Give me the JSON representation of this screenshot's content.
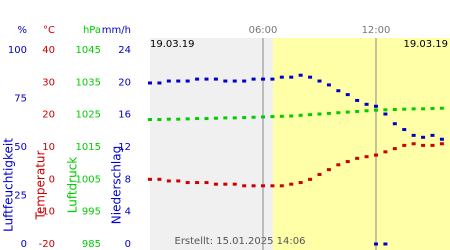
{
  "chart_data": {
    "type": "line",
    "dates": [
      "19.03.19",
      "19.03.19"
    ],
    "footer": "Erstellt: 15.01.2025 14:06",
    "xlim": [
      0,
      15.93
    ],
    "xticks": [
      {
        "value": 6,
        "label": "06:00"
      },
      {
        "value": 12,
        "label": "12:00"
      }
    ],
    "axes": [
      {
        "unit": "%",
        "label": "Luftfeuchtigkeit",
        "color": "#0000cc",
        "lim": [
          0,
          100
        ],
        "ticks": [
          0,
          25,
          50,
          75,
          100
        ]
      },
      {
        "unit": "°C",
        "label": "Temperatur",
        "color": "#cc0000",
        "lim": [
          -20,
          40
        ],
        "ticks": [
          -20,
          -10,
          0,
          10,
          20,
          30,
          40
        ]
      },
      {
        "unit": "hPa",
        "label": "Luftdruck",
        "color": "#00cc00",
        "lim": [
          985,
          1045
        ],
        "ticks": [
          985,
          995,
          1005,
          1015,
          1025,
          1035,
          1045
        ]
      },
      {
        "unit": "mm/h",
        "label": "Niederschlag",
        "color": "#0000cc",
        "lim": [
          0,
          24
        ],
        "ticks": [
          0,
          4,
          8,
          12,
          16,
          20,
          24
        ]
      }
    ],
    "x": [
      0,
      0.5,
      1,
      1.5,
      2,
      2.5,
      3,
      3.5,
      4,
      4.5,
      5,
      5.5,
      6,
      6.5,
      7,
      7.5,
      8,
      8.5,
      9,
      9.5,
      10,
      10.5,
      11,
      11.5,
      12,
      12.5,
      13,
      13.5,
      14,
      14.5,
      15,
      15.5
    ],
    "series": [
      {
        "axis": 0,
        "color": "#0000cc",
        "values": [
          83,
          83,
          84,
          84,
          84,
          85,
          85,
          85,
          84,
          84,
          84,
          85,
          85,
          85,
          86,
          86,
          87,
          86,
          84,
          82,
          79,
          77,
          74,
          72,
          71,
          67,
          62,
          59,
          56,
          55,
          56,
          54
        ]
      },
      {
        "axis": 1,
        "color": "#cc0000",
        "values": [
          0,
          0,
          -0.5,
          -0.5,
          -1,
          -1,
          -1,
          -1.5,
          -1.5,
          -1.5,
          -2,
          -2,
          -2,
          -2,
          -2,
          -1.5,
          -1,
          0,
          1.5,
          3,
          4.5,
          5.5,
          6.5,
          7,
          7.5,
          8.5,
          9.5,
          10.5,
          11,
          10.5,
          10.5,
          11
        ]
      },
      {
        "axis": 2,
        "color": "#00cc00",
        "values": [
          1023.5,
          1023.5,
          1023.6,
          1023.6,
          1023.7,
          1023.8,
          1023.8,
          1023.9,
          1024,
          1024,
          1024.1,
          1024.2,
          1024.3,
          1024.4,
          1024.5,
          1024.6,
          1024.8,
          1025,
          1025.2,
          1025.4,
          1025.6,
          1025.8,
          1026,
          1026.2,
          1026.4,
          1026.5,
          1026.6,
          1026.7,
          1026.8,
          1026.8,
          1026.9,
          1027
        ]
      },
      {
        "axis": 3,
        "color": "#0000cc",
        "values": [
          null,
          null,
          null,
          null,
          null,
          null,
          null,
          null,
          null,
          null,
          null,
          null,
          null,
          null,
          null,
          null,
          null,
          null,
          null,
          null,
          null,
          null,
          null,
          null,
          0,
          0,
          null,
          null,
          null,
          null,
          null,
          null
        ]
      }
    ]
  }
}
